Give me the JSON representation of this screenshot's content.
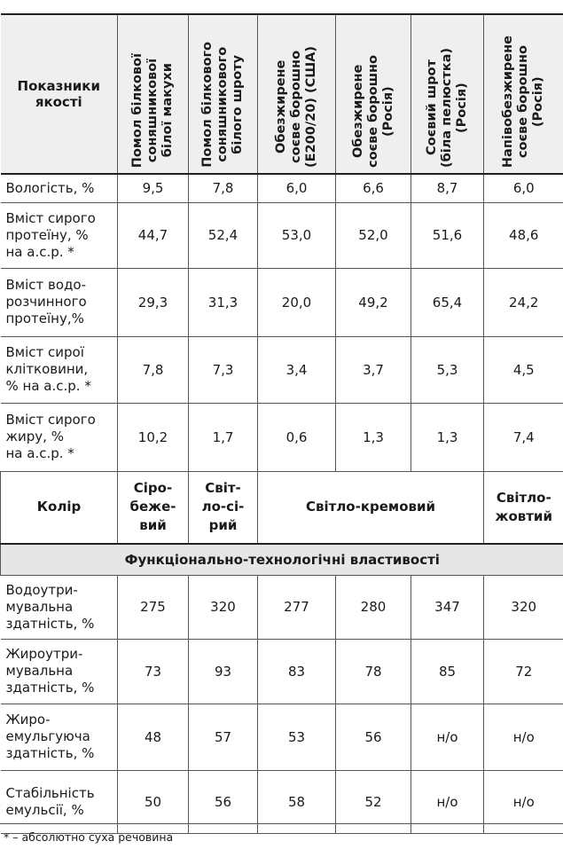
{
  "header": {
    "label": "Показники якості",
    "columns": [
      "Помол білкової\nсоняшникової\nбілої макухи",
      "Помол білкового\nсоняшникового\nбілого шроту",
      "Обезжирене\nсоєве борошно\n(Е200/20) (США)",
      "Обезжирене\nсоєве борошно\n(Росія)",
      "Соєвий шрот\n(біла пелюстка)\n(Росія)",
      "Напівобезжирене\nсоєве борошно\n(Росія)"
    ]
  },
  "quality_rows": [
    {
      "label": "Вологість, %",
      "values": [
        "9,5",
        "7,8",
        "6,0",
        "6,6",
        "8,7",
        "6,0"
      ]
    },
    {
      "label": "Вміст сирого\nпротеїну, %\nна а.с.р. *",
      "values": [
        "44,7",
        "52,4",
        "53,0",
        "52,0",
        "51,6",
        "48,6"
      ]
    },
    {
      "label": "Вміст водо-\nрозчинного\nпротеїну,%",
      "values": [
        "29,3",
        "31,3",
        "20,0",
        "49,2",
        "65,4",
        "24,2"
      ]
    },
    {
      "label": "Вміст сирої\nклітковини,\n% на а.с.р. *",
      "values": [
        "7,8",
        "7,3",
        "3,4",
        "3,7",
        "5,3",
        "4,5"
      ]
    },
    {
      "label": "Вміст сирого\nжиру, %\nна а.с.р. *",
      "values": [
        "10,2",
        "1,7",
        "0,6",
        "1,3",
        "1,3",
        "7,4"
      ]
    }
  ],
  "color_row": {
    "label": "Колір",
    "values": [
      "Сіро-\nбеже-\nвий",
      "Світ-\nло-сі-\nрий",
      "Світло-кремовий",
      "Світло-\nжовтий"
    ]
  },
  "section_title": "Функціонально-технологічні властивості",
  "functional_rows": [
    {
      "label": "Водоутри-\nмувальна\nздатність, %",
      "values": [
        "275",
        "320",
        "277",
        "280",
        "347",
        "320"
      ]
    },
    {
      "label": "Жироутри-\nмувальна\nздатність, %",
      "values": [
        "73",
        "93",
        "83",
        "78",
        "85",
        "72"
      ]
    },
    {
      "label": "Жиро-\nемульгуюча\nздатність, %",
      "values": [
        "48",
        "57",
        "53",
        "56",
        "н/о",
        "н/о"
      ]
    },
    {
      "label": "Стабільність\nемульсії, %",
      "values": [
        "50",
        "56",
        "58",
        "52",
        "н/о",
        "н/о"
      ]
    }
  ],
  "footnote": "* – абсолютно суха речовина"
}
